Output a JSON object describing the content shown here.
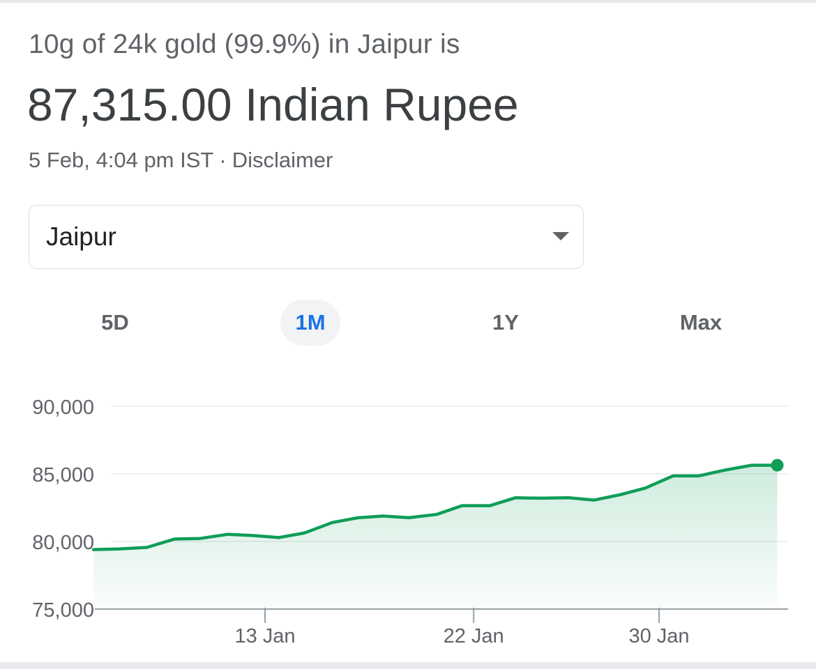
{
  "header": {
    "subtitle": "10g of 24k gold (99.9%) in Jaipur is",
    "value": "87,315.00 Indian Rupee",
    "timestamp": "5 Feb, 4:04 pm IST",
    "separator": "·",
    "disclaimer_label": "Disclaimer"
  },
  "location_select": {
    "selected": "Jaipur",
    "caret_icon": "triangle-down-icon"
  },
  "range_tabs": [
    {
      "label": "5D",
      "active": false
    },
    {
      "label": "1M",
      "active": true
    },
    {
      "label": "1Y",
      "active": false
    },
    {
      "label": "Max",
      "active": false
    }
  ],
  "colors": {
    "line": "#0f9d58",
    "active_tab": "#1a73e8",
    "text_primary": "#3c4043",
    "text_secondary": "#5f6368"
  },
  "chart_data": {
    "type": "area",
    "title": "",
    "xlabel": "",
    "ylabel": "",
    "ylim": [
      75000,
      90000
    ],
    "yticks": [
      {
        "value": 90000,
        "label": "90,000"
      },
      {
        "value": 85000,
        "label": "85,000"
      },
      {
        "value": 80000,
        "label": "80,000"
      },
      {
        "value": 75000,
        "label": "75,000"
      }
    ],
    "xticks": [
      {
        "day": 13,
        "label": "13 Jan"
      },
      {
        "day": 22,
        "label": "22 Jan"
      },
      {
        "day": 30,
        "label": "30 Jan"
      }
    ],
    "grid": true,
    "x_unit": "day of January (after 31 continues into February)",
    "series": [
      {
        "x": [
          5.6,
          6.7,
          7.9,
          9.1,
          10.2,
          11.4,
          12.5,
          13.6,
          14.7,
          15.9,
          17.0,
          18.1,
          19.2,
          20.4,
          21.5,
          22.7,
          23.8,
          24.9,
          26.1,
          27.2,
          28.3,
          29.4,
          30.6,
          31.7,
          32.9,
          34.0,
          35.1
        ],
        "y": [
          79400,
          79450,
          79560,
          80180,
          80220,
          80530,
          80440,
          80290,
          80630,
          81400,
          81750,
          81880,
          81760,
          82000,
          82650,
          82650,
          83230,
          83200,
          83230,
          83060,
          83450,
          83950,
          84850,
          84850,
          85300,
          85640,
          85640
        ]
      }
    ]
  }
}
